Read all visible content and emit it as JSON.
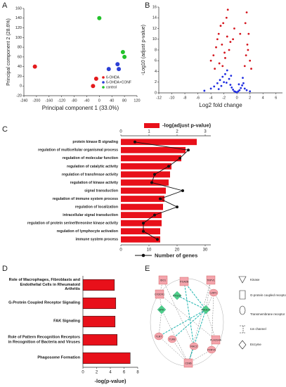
{
  "chart_data": [
    {
      "type": "scatter",
      "panel": "A",
      "xlabel": "Principal component 1 (33.0%)",
      "ylabel": "Principal component 2 (28.6%)",
      "xlim": [
        -240,
        120
      ],
      "xticks": [
        -240,
        -200,
        -160,
        -120,
        -80,
        -40,
        0,
        40,
        80,
        120
      ],
      "ylim": [
        -20,
        160
      ],
      "yticks": [
        -20,
        0,
        20,
        40,
        60,
        80,
        100,
        120,
        140,
        160
      ],
      "legend": "lower right",
      "series": [
        {
          "name": "6-OHDA",
          "color": "#e41a1c",
          "x": [
            -205,
            -20,
            -10
          ],
          "values": [
            40,
            0,
            15
          ]
        },
        {
          "name": "6-OHDA+CONF",
          "color": "#2b3fd6",
          "x": [
            30,
            58,
            62
          ],
          "values": [
            35,
            45,
            35
          ]
        },
        {
          "name": "control",
          "color": "#22c22a",
          "x": [
            0,
            75,
            80
          ],
          "values": [
            140,
            70,
            60
          ]
        }
      ]
    },
    {
      "type": "volcano",
      "panel": "B",
      "xlabel": "Log2 fold change",
      "ylabel": "-Log10 (adjust p-value)",
      "xlim": [
        -12,
        7
      ],
      "xticks": [
        -12,
        -10,
        -8,
        -6,
        -4,
        -2,
        0,
        2,
        4,
        6
      ],
      "ylim": [
        0,
        16
      ],
      "yticks": [
        0,
        2,
        4,
        6,
        8,
        10,
        12,
        14,
        16
      ],
      "series": [
        {
          "color": "#1f2de0",
          "x": [
            -3.5,
            -3,
            -2.6,
            -2.2,
            -2,
            -1.8,
            -1.5,
            -1.2,
            -1,
            -0.8,
            -0.6,
            -0.4,
            -0.2,
            0,
            0.2,
            0.4,
            0.6,
            0.8,
            1,
            1.2,
            1.5,
            -2.8,
            -2.4,
            -1.6,
            -0.9,
            0.3,
            0.9,
            -5,
            -4,
            2
          ],
          "values": [
            1.2,
            1.8,
            2.4,
            3,
            2,
            3.5,
            4.2,
            2.6,
            1.5,
            1,
            0.6,
            0.3,
            0.2,
            0.1,
            0.3,
            0.5,
            0.9,
            1.4,
            1.8,
            0.8,
            0.5,
            0.7,
            1.3,
            1.9,
            3.2,
            1.6,
            2.8,
            0.4,
            0.8,
            0.3
          ]
        },
        {
          "color": "#d4141c",
          "x": [
            -4,
            -3.6,
            -3.2,
            -3,
            -2.8,
            -2.5,
            -2.3,
            -2.1,
            -1.9,
            -1.6,
            -1.4,
            -1.2,
            -2.7,
            -3.4,
            -1.8,
            -2.2,
            -1.5,
            -1,
            1.2,
            1.4,
            1.6,
            1.8,
            2,
            2.2,
            1.3,
            1.5,
            1.7,
            -0.4,
            -0.6,
            0.5
          ],
          "values": [
            6,
            7,
            8.5,
            10,
            11,
            12.5,
            9,
            13,
            7.5,
            14,
            15.5,
            8,
            5.5,
            4.5,
            6.5,
            5,
            10.5,
            9.5,
            5,
            7,
            9,
            11,
            6,
            4.5,
            13,
            15,
            8,
            12,
            10,
            11
          ]
        }
      ]
    },
    {
      "type": "bar-line",
      "panel": "C",
      "categories": [
        "protein kinase B signaling",
        "regulation of multicellular organismal process",
        "regulation of molecular function",
        "regulation of catalytic activity",
        "regulation of transferase activity",
        "regulation of kinase activity",
        "signal transduction",
        "regulation of immune system process",
        "regulation of localization",
        "intracellular signal transduction",
        "regulation of protein serine/threonine kinase activity",
        "regulation of lymphocyte activation",
        "immune system process"
      ],
      "xlim": [
        0,
        3
      ],
      "xticks": [
        0,
        1,
        2,
        3
      ],
      "x2lim": [
        0,
        30
      ],
      "x2ticks": [
        0,
        10,
        20,
        30
      ],
      "series": [
        {
          "name": "-log(adjust p-value)",
          "color": "#e8101a",
          "values": [
            2.7,
            2.3,
            2.15,
            1.8,
            1.75,
            1.7,
            1.6,
            1.55,
            1.5,
            1.45,
            1.45,
            1.4,
            1.4
          ]
        },
        {
          "name": "Number of genes",
          "color": "#111111",
          "axis": "x2",
          "values": [
            5,
            24,
            21,
            17,
            12,
            11,
            22,
            14,
            20,
            12,
            8,
            8,
            13
          ]
        }
      ]
    },
    {
      "type": "bar",
      "panel": "D",
      "xlabel": "-log(p-value)",
      "categories": [
        "Role of Macrophages, Fibroblasts and Endothelial Cells in Rheumatoid Arthritis",
        "G-Protein Coupled Receptor Signaling",
        "FAK Signaling",
        "Role of Pattern Recognition Receptors in Recognition of Bacteria and Viruses",
        "Phagosome Formation"
      ],
      "values": [
        4.6,
        4.8,
        4.7,
        5.0,
        6.9
      ],
      "color": "#e8101a",
      "xlim": [
        0,
        8
      ],
      "xticks": [
        0,
        2,
        4,
        6,
        8
      ]
    },
    {
      "type": "network",
      "panel": "E",
      "nodes": [
        {
          "label": "IDO1"
        },
        {
          "label": "ITGA2B"
        },
        {
          "label": "TRPV1"
        },
        {
          "label": "CX3CR1"
        },
        {
          "label": "LRP1"
        },
        {
          "label": "BTK"
        },
        {
          "label": "PIK3CD"
        },
        {
          "label": "TLR7"
        },
        {
          "label": "TLR8"
        },
        {
          "label": "PLA2G4A"
        },
        {
          "label": "P2RY6"
        },
        {
          "label": "CD86"
        },
        {
          "label": "RAC2"
        },
        {
          "label": "PTGS2"
        }
      ],
      "legend": [
        "Kinase",
        "G-protein coupled receptor",
        "Transmembrane receptor",
        "Ion channel",
        "Enzyme"
      ]
    }
  ]
}
